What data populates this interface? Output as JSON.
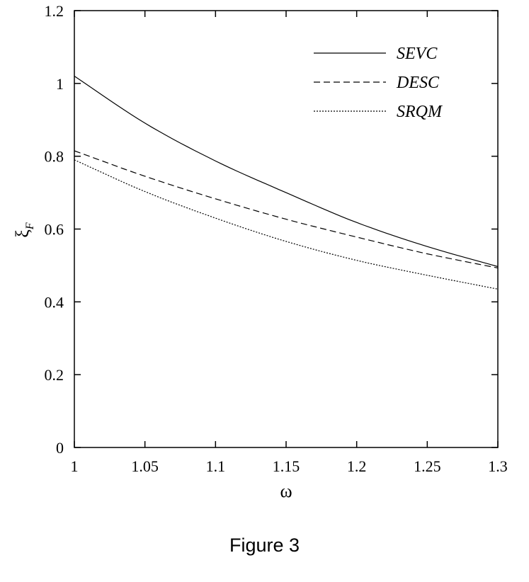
{
  "chart_data": {
    "type": "line",
    "xlabel": "ω",
    "ylabel": "ξ",
    "ylabel_subscript": "F",
    "xlim": [
      1,
      1.3
    ],
    "ylim": [
      0,
      1.2
    ],
    "x_ticks": [
      1,
      1.05,
      1.1,
      1.15,
      1.2,
      1.25,
      1.3
    ],
    "x_tick_labels": [
      "1",
      "1.05",
      "1.1",
      "1.15",
      "1.2",
      "1.25",
      "1.3"
    ],
    "y_ticks": [
      0,
      0.2,
      0.4,
      0.6,
      0.8,
      1,
      1.2
    ],
    "y_tick_labels": [
      "0",
      "0.2",
      "0.4",
      "0.6",
      "0.8",
      "1",
      "1.2"
    ],
    "grid": false,
    "legend_position": "top-right",
    "x": [
      1,
      1.05,
      1.1,
      1.15,
      1.2,
      1.25,
      1.3
    ],
    "series": [
      {
        "name": "SEVC",
        "style": "solid",
        "values": [
          1.02,
          0.891,
          0.787,
          0.7,
          0.618,
          0.552,
          0.497
        ]
      },
      {
        "name": "DESC",
        "style": "dashed",
        "values": [
          0.815,
          0.745,
          0.683,
          0.627,
          0.578,
          0.532,
          0.493
        ]
      },
      {
        "name": "SRQM",
        "style": "dotted",
        "values": [
          0.79,
          0.703,
          0.63,
          0.566,
          0.514,
          0.473,
          0.435
        ]
      }
    ]
  },
  "caption": "Figure 3"
}
